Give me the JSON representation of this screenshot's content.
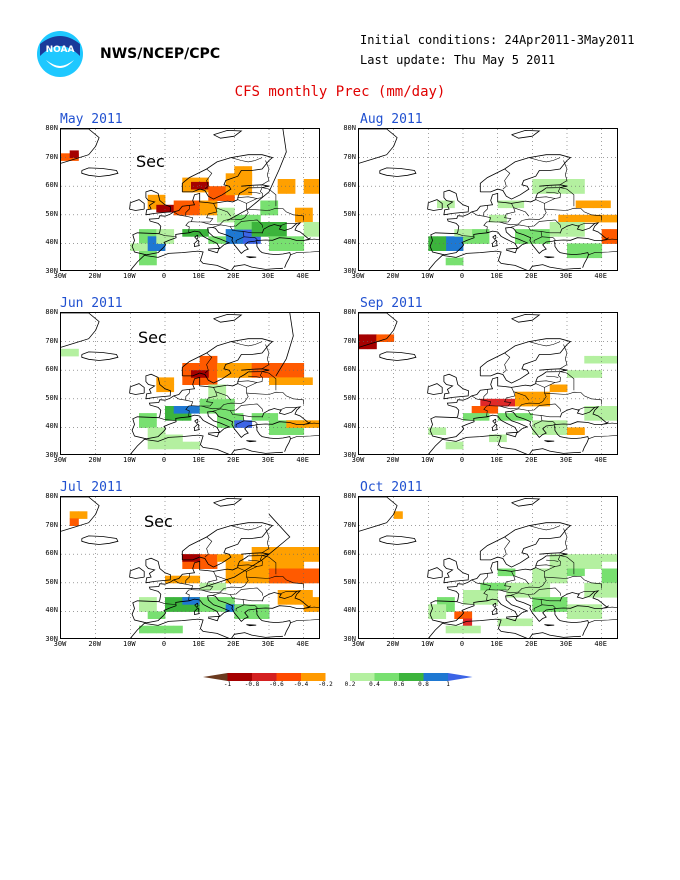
{
  "header": {
    "org": "NWS/NCEP/CPC",
    "initial_conditions": "Initial conditions: 24Apr2011-3May2011",
    "last_update": "Last update: Thu May 5 2011",
    "title": "CFS monthly Prec (mm/day)",
    "logo_text": "NOAA"
  },
  "axes": {
    "lat_labels": [
      "80N",
      "70N",
      "60N",
      "50N",
      "40N",
      "30N"
    ],
    "lon_labels": [
      "30W",
      "20W",
      "10W",
      "0",
      "10E",
      "20E",
      "30E",
      "40E"
    ]
  },
  "panels": [
    {
      "title": "May 2011",
      "annotation": "Sec"
    },
    {
      "title": "Aug 2011",
      "annotation": ""
    },
    {
      "title": "Jun 2011",
      "annotation": "Sec"
    },
    {
      "title": "Sep 2011",
      "annotation": ""
    },
    {
      "title": "Jul 2011",
      "annotation": "Sec"
    },
    {
      "title": "Oct 2011",
      "annotation": ""
    }
  ],
  "colorbar": {
    "labels": [
      "-1",
      "-0.8",
      "-0.6",
      "-0.4",
      "-0.2",
      "0.2",
      "0.4",
      "0.6",
      "0.8",
      "1"
    ],
    "colors": [
      "#6b3a1f",
      "#a50000",
      "#d42020",
      "#ff4a00",
      "#ff9a00",
      "#ffffff",
      "#b4f0a0",
      "#78e070",
      "#3cb43c",
      "#1e78d2",
      "#3c64e6"
    ]
  }
}
